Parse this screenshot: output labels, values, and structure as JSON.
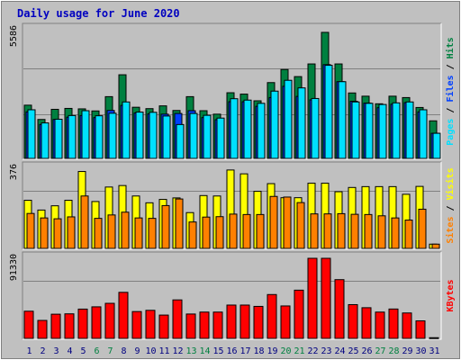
{
  "chart_data": {
    "title": "Daily usage for June 2020",
    "type": "bar",
    "days": [
      "1",
      "2",
      "3",
      "4",
      "5",
      "6",
      "7",
      "8",
      "9",
      "10",
      "11",
      "12",
      "13",
      "14",
      "15",
      "16",
      "17",
      "18",
      "19",
      "20",
      "21",
      "22",
      "23",
      "24",
      "25",
      "26",
      "27",
      "28",
      "29",
      "30",
      "31"
    ],
    "weekend_days": [
      "6",
      "7",
      "13",
      "14",
      "20",
      "21",
      "27",
      "28"
    ],
    "colors": {
      "title": "#0000c0",
      "hits": "#008040",
      "files": "#0040ff",
      "pages": "#00e0ff",
      "visits": "#ffff00",
      "sites": "#ff8000",
      "kbytes": "#ff0000",
      "weekend_label": "#008040",
      "weekday_label": "#000080",
      "plot_bg": "#c0c0c0",
      "grid": "#808080"
    },
    "panels": [
      {
        "id": "hits_files_pages",
        "max_label": "5586",
        "ymax": 5586,
        "right_label": [
          {
            "text": "Pages",
            "color": "#00e0ff"
          },
          {
            "text": " / ",
            "color": "#000000"
          },
          {
            "text": "Files",
            "color": "#0040ff"
          },
          {
            "text": " / ",
            "color": "#000000"
          },
          {
            "text": "Hits",
            "color": "#008040"
          }
        ],
        "series": [
          {
            "name": "Hits",
            "color": "#008040",
            "values": [
              2310,
              1690,
              2130,
              2170,
              2150,
              2060,
              2680,
              3630,
              2220,
              2160,
              2280,
              2080,
              2680,
              2070,
              1920,
              2850,
              2790,
              2500,
              3290,
              3860,
              3550,
              4100,
              5470,
              4100,
              2840,
              2700,
              2370,
              2700,
              2640,
              2210,
              1630
            ]
          },
          {
            "name": "Files",
            "color": "#0040ff",
            "values": [
              2020,
              1470,
              1690,
              1790,
              1860,
              1770,
              2080,
              2300,
              1970,
              1930,
              1920,
              1950,
              2070,
              1770,
              1680,
              2460,
              2460,
              2260,
              2640,
              3130,
              2690,
              2540,
              4070,
              3330,
              2480,
              2400,
              2200,
              2350,
              2420,
              2020,
              1090
            ]
          },
          {
            "name": "Pages",
            "color": "#00e0ff",
            "values": [
              2110,
              1540,
              1700,
              1860,
              2070,
              1850,
              1960,
              2450,
              2010,
              2000,
              1840,
              1470,
              1950,
              1870,
              1750,
              2590,
              2530,
              2390,
              2920,
              3390,
              3060,
              2600,
              4040,
              3330,
              2450,
              2390,
              2340,
              2410,
              2450,
              2110,
              1090
            ]
          }
        ]
      },
      {
        "id": "visits_sites",
        "max_label": "376",
        "ymax": 376,
        "right_label": [
          {
            "text": "Sites",
            "color": "#ff8000"
          },
          {
            "text": " / ",
            "color": "#000000"
          },
          {
            "text": "Visits",
            "color": "#ffff00"
          }
        ],
        "series": [
          {
            "name": "Visits",
            "color": "#ffff00",
            "values": [
              226,
              180,
              200,
              226,
              361,
              220,
              288,
              295,
              246,
              214,
              230,
              237,
              168,
              248,
              246,
              368,
              350,
              268,
              304,
              238,
              238,
              306,
              306,
              266,
              286,
              290,
              290,
              290,
              254,
              291,
              20
            ]
          },
          {
            "name": "Sites",
            "color": "#ff8000",
            "values": [
              164,
              143,
              139,
              148,
              246,
              141,
              157,
              170,
              143,
              141,
              201,
              232,
              124,
              147,
              149,
              161,
              159,
              159,
              244,
              241,
              215,
              162,
              162,
              163,
              160,
              159,
              153,
              143,
              133,
              184,
              20
            ]
          }
        ]
      },
      {
        "id": "kbytes",
        "max_label": "91330",
        "ymax": 91330,
        "right_label": [
          {
            "text": "KBytes",
            "color": "#ff0000"
          }
        ],
        "series": [
          {
            "name": "KBytes",
            "color": "#ff0000",
            "values": [
              31000,
              20500,
              27600,
              28000,
              33400,
              36000,
              40000,
              52500,
              30600,
              32000,
              26600,
              43900,
              27800,
              30000,
              30000,
              38000,
              38000,
              36500,
              50000,
              37000,
              55000,
              91330,
              91330,
              67000,
              38500,
              35000,
              30000,
              33500,
              29000,
              20000,
              800
            ]
          }
        ]
      }
    ]
  }
}
